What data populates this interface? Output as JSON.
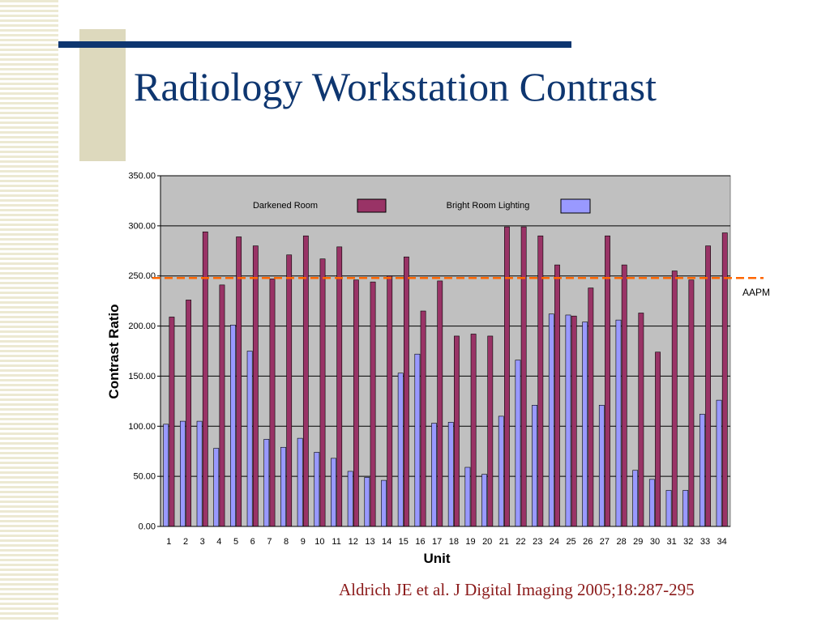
{
  "slide": {
    "title": "Radiology Workstation Contrast",
    "citation": "Aldrich JE et al. J Digital Imaging  2005;18:287-295"
  },
  "colors": {
    "title": "#0e3670",
    "citation": "#8b1a1a",
    "plot_background": "#c0c0c0",
    "darkened_bar": "#993366",
    "bright_bar": "#9999ff",
    "reference_line": "#ff6600"
  },
  "chart_data": {
    "type": "bar",
    "title": "",
    "xlabel": "Unit",
    "ylabel": "Contrast Ratio",
    "ylim": [
      0,
      350
    ],
    "yticks": [
      "0.00",
      "50.00",
      "100.00",
      "150.00",
      "200.00",
      "250.00",
      "300.00",
      "350.00"
    ],
    "grid": true,
    "legend_position": "top-inside",
    "categories": [
      "1",
      "2",
      "3",
      "4",
      "5",
      "6",
      "7",
      "8",
      "9",
      "10",
      "11",
      "12",
      "13",
      "14",
      "15",
      "16",
      "17",
      "18",
      "19",
      "20",
      "21",
      "22",
      "23",
      "24",
      "25",
      "26",
      "27",
      "28",
      "29",
      "30",
      "31",
      "32",
      "33",
      "34"
    ],
    "series": [
      {
        "name": "Darkened Room",
        "values": [
          209,
          226,
          294,
          241,
          289,
          280,
          247,
          271,
          290,
          267,
          279,
          246,
          244,
          250,
          269,
          215,
          245,
          190,
          192,
          190,
          299,
          299,
          290,
          261,
          210,
          238,
          290,
          261,
          213,
          174,
          255,
          246,
          280,
          293
        ]
      },
      {
        "name": "Bright Room Lighting",
        "values": [
          102,
          105,
          105,
          78,
          201,
          175,
          87,
          79,
          88,
          74,
          68,
          55,
          49,
          46,
          153,
          172,
          103,
          104,
          59,
          52,
          110,
          166,
          121,
          212,
          211,
          204,
          121,
          206,
          56,
          47,
          36,
          36,
          112,
          126
        ]
      }
    ],
    "reference_line": {
      "label": "AAPM",
      "value": 248
    }
  }
}
